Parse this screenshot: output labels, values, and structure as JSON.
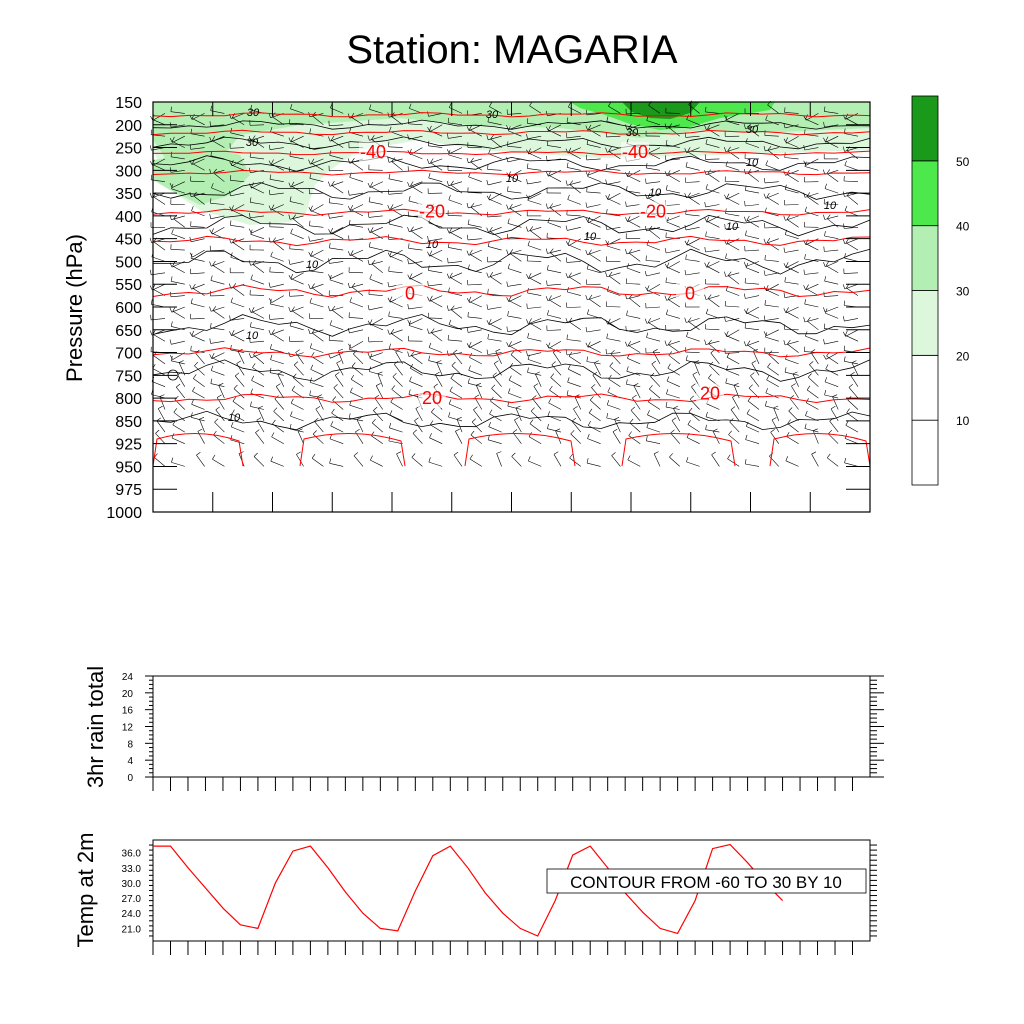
{
  "title": "Station: MAGARIA",
  "colors": {
    "shade_10_20": "#ffffff",
    "shade_20_30": "#dcf7dc",
    "shade_30_40": "#b3efb3",
    "shade_40_50": "#4ce84c",
    "shade_50_plus": "#1a991a",
    "temp_contour": "#ff0000",
    "speed_contour": "#000000",
    "barb": "#000000",
    "temp_line": "#ff0000"
  },
  "chart_data": [
    {
      "type": "heatmap",
      "panel": "upper-air time-height section",
      "ylabel": "Pressure (hPa)",
      "y_scale": "pressure (reversed)",
      "y_ticks": [
        "150",
        "200",
        "250",
        "300",
        "350",
        "400",
        "450",
        "500",
        "550",
        "600",
        "650",
        "700",
        "750",
        "800",
        "850",
        "925",
        "950",
        "975",
        "1000"
      ],
      "x_tick_count": 12,
      "shaded_field": "wind speed",
      "colorbar_levels": [
        "10",
        "20",
        "30",
        "40",
        "50"
      ],
      "temperature_contour_labels": [
        {
          "value": "-40",
          "pressure": 260
        },
        {
          "value": "-40",
          "pressure": 260
        },
        {
          "value": "-20",
          "pressure": 390
        },
        {
          "value": "-20",
          "pressure": 390
        },
        {
          "value": "0",
          "pressure": 570
        },
        {
          "value": "0",
          "pressure": 570
        },
        {
          "value": "20",
          "pressure": 800
        },
        {
          "value": "20",
          "pressure": 790
        }
      ],
      "speed_contour_labels": [
        "30",
        "30",
        "30",
        "30",
        "30",
        "10",
        "10",
        "10",
        "10",
        "10",
        "10",
        "10",
        "10",
        "10",
        "10"
      ],
      "wind_barbs": "present at every grid point"
    },
    {
      "type": "line",
      "panel": "precipitation",
      "ylabel": "3hr rain total",
      "ylim": [
        0,
        24
      ],
      "y_ticks": [
        "0",
        "4",
        "8",
        "12",
        "16",
        "20",
        "24"
      ],
      "series": [
        {
          "values": []
        }
      ]
    },
    {
      "type": "line",
      "panel": "2m temperature",
      "ylabel": "Temp at 2m",
      "ylim": [
        18.5,
        38.5
      ],
      "y_ticks": [
        "21.0",
        "24.0",
        "27.0",
        "30.0",
        "33.0",
        "36.0"
      ],
      "series": [
        {
          "values": [
            37.3,
            37.3,
            33.0,
            29.0,
            25.0,
            21.7,
            21.0,
            30.0,
            36.3,
            37.3,
            33.0,
            28.2,
            24.0,
            21.0,
            20.5,
            28.4,
            35.4,
            37.3,
            33.0,
            28.0,
            24.0,
            21.0,
            19.5,
            26.5,
            35.5,
            37.3,
            33.0,
            28.0,
            24.2,
            21.0,
            20.0,
            26.5,
            36.8,
            37.6,
            34.0,
            30.0,
            26.5
          ]
        }
      ],
      "annotation": "CONTOUR FROM -60 TO 30 BY 10"
    }
  ]
}
